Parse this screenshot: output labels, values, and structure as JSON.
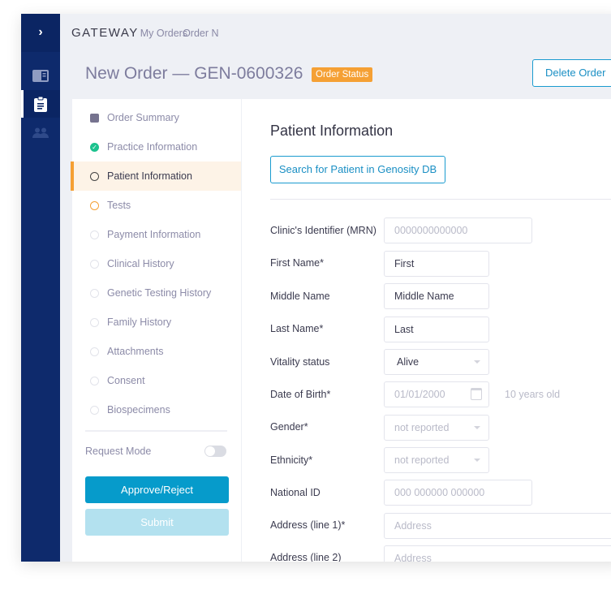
{
  "nav": {
    "expand_icon": "chevron-right",
    "icons": [
      "panel-icon",
      "clipboard-icon",
      "users-icon"
    ]
  },
  "breadcrumb": {
    "brand": "GATEWAY",
    "items": [
      "My Orders",
      "Order N"
    ]
  },
  "header": {
    "title": "New Order — GEN-0600326",
    "status_badge": "Order Status",
    "delete_label": "Delete Order"
  },
  "steps": [
    {
      "label": "Order Summary",
      "state": "summary"
    },
    {
      "label": "Practice Information",
      "state": "complete"
    },
    {
      "label": "Patient Information",
      "state": "active"
    },
    {
      "label": "Tests",
      "state": "in-progress"
    },
    {
      "label": "Payment Information",
      "state": "pending"
    },
    {
      "label": "Clinical History",
      "state": "pending"
    },
    {
      "label": "Genetic Testing History",
      "state": "pending"
    },
    {
      "label": "Family History",
      "state": "pending"
    },
    {
      "label": "Attachments",
      "state": "pending"
    },
    {
      "label": "Consent",
      "state": "pending"
    },
    {
      "label": "Biospecimens",
      "state": "pending"
    }
  ],
  "request_mode": {
    "label": "Request Mode",
    "on": false
  },
  "actions": {
    "approve": "Approve/Reject",
    "submit": "Submit"
  },
  "form": {
    "title": "Patient Information",
    "search_button": "Search for Patient in Genosity DB",
    "fields": [
      {
        "label": "Clinic's Identifier (MRN)",
        "placeholder": "0000000000000"
      },
      {
        "label": "First Name*",
        "value": "First"
      },
      {
        "label": "Middle Name",
        "value": "Middle Name"
      },
      {
        "label": "Last Name*",
        "value": "Last"
      },
      {
        "label": "Vitality status",
        "value": "Alive"
      },
      {
        "label": "Date of Birth*",
        "placeholder": "01/01/2000",
        "note": "10 years old"
      },
      {
        "label": "Gender*",
        "placeholder": "not reported"
      },
      {
        "label": "Ethnicity*",
        "placeholder": "not reported"
      },
      {
        "label": "National ID",
        "placeholder": "000 000000 000000"
      },
      {
        "label": "Address (line 1)*",
        "placeholder": "Address"
      },
      {
        "label": "Address (line 2)",
        "placeholder": "Address"
      }
    ]
  },
  "colors": {
    "nav": "#0e2a6c",
    "accent": "#1a9bcf",
    "status": "#f5a034",
    "complete": "#1cc28e"
  }
}
